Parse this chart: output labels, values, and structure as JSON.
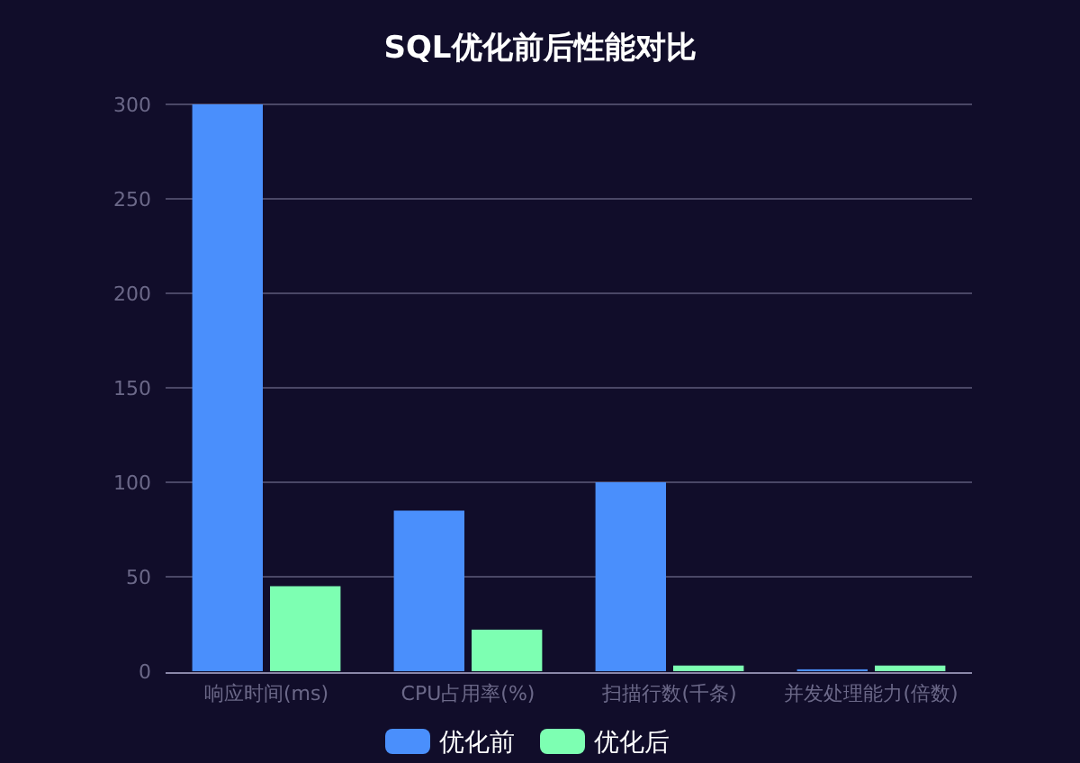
{
  "chart_data": {
    "type": "bar",
    "title": "SQL优化前后性能对比",
    "categories": [
      "响应时间(ms)",
      "CPU占用率(%)",
      "扫描行数(千条)",
      "并发处理能力(倍数)"
    ],
    "series": [
      {
        "name": "优化前",
        "color": "#4a8ffc",
        "values": [
          300,
          85,
          100,
          1
        ]
      },
      {
        "name": "优化后",
        "color": "#7dffb2",
        "values": [
          45,
          22,
          3,
          3
        ]
      }
    ],
    "ylim": [
      0,
      300
    ],
    "yticks": [
      0,
      50,
      100,
      150,
      200,
      250,
      300
    ],
    "grid": "y",
    "legend": "bottom"
  }
}
